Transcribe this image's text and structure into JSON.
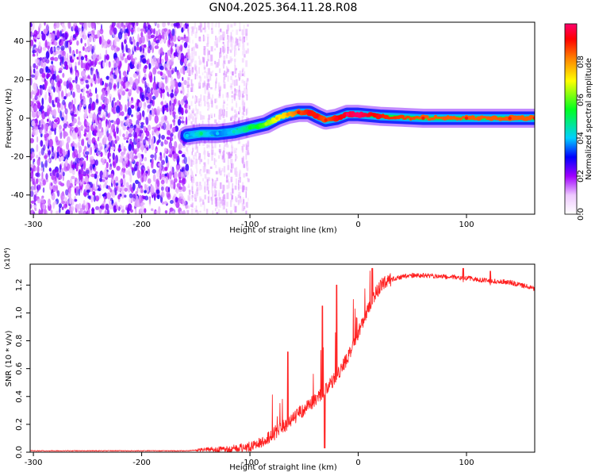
{
  "figure": {
    "title": "GN04.2025.364.11.28.R08"
  },
  "chart_data": [
    {
      "type": "heatmap",
      "title": "GN04.2025.364.11.28.R08",
      "xlabel": "Height of straight line (km)",
      "ylabel": "Frequency (Hz)",
      "colorbar_label": "Normalized spectral amplitude",
      "xlim": [
        -303,
        163
      ],
      "ylim": [
        -50,
        50
      ],
      "clim": [
        0,
        1
      ],
      "xticks": [
        -300,
        -200,
        -100,
        0,
        100
      ],
      "yticks": [
        -40,
        -20,
        0,
        20,
        40
      ],
      "colorbar_ticks": [
        0.0,
        0.2,
        0.4,
        0.6,
        0.8
      ],
      "grid": false,
      "colormap": [
        "#ffffff",
        "#7b00ff",
        "#0018ff",
        "#00c8ff",
        "#00ff20",
        "#ffff00",
        "#ff8000",
        "#ff0000",
        "#ff0060"
      ],
      "regions": [
        {
          "name": "sparse noise region",
          "x_range": [
            -303,
            -158
          ],
          "frequency_range": [
            -50,
            50
          ],
          "amplitude": "low"
        },
        {
          "name": "scattered noise columns",
          "x_range": [
            -158,
            -100
          ],
          "frequency_range": [
            -50,
            50
          ],
          "amplitude": "very low"
        },
        {
          "name": "central spectral trace",
          "x_range": [
            -158,
            163
          ],
          "frequency_range": [
            -10,
            4
          ],
          "amplitude": "high"
        }
      ],
      "trace": [
        {
          "x": -158,
          "y": -9,
          "amp": 0.35
        },
        {
          "x": -145,
          "y": -8,
          "amp": 0.45
        },
        {
          "x": -130,
          "y": -8,
          "amp": 0.35
        },
        {
          "x": -115,
          "y": -7,
          "amp": 0.4
        },
        {
          "x": -100,
          "y": -5,
          "amp": 0.5
        },
        {
          "x": -85,
          "y": -3,
          "amp": 0.6
        },
        {
          "x": -75,
          "y": 0,
          "amp": 0.7
        },
        {
          "x": -65,
          "y": 2,
          "amp": 0.75
        },
        {
          "x": -55,
          "y": 3,
          "amp": 0.85
        },
        {
          "x": -45,
          "y": 3,
          "amp": 0.9
        },
        {
          "x": -38,
          "y": 1,
          "amp": 0.9
        },
        {
          "x": -30,
          "y": -1,
          "amp": 0.85
        },
        {
          "x": -20,
          "y": 0,
          "amp": 0.9
        },
        {
          "x": -10,
          "y": 2,
          "amp": 0.95
        },
        {
          "x": 0,
          "y": 2,
          "amp": 1.0
        },
        {
          "x": 20,
          "y": 1,
          "amp": 0.9
        },
        {
          "x": 60,
          "y": 0,
          "amp": 0.85
        },
        {
          "x": 100,
          "y": 0,
          "amp": 0.85
        },
        {
          "x": 140,
          "y": 0,
          "amp": 0.85
        },
        {
          "x": 163,
          "y": 0,
          "amp": 0.85
        }
      ]
    },
    {
      "type": "line",
      "xlabel": "Height of straight line (km)",
      "ylabel": "SNR (10 * v/v)",
      "scale_label": "(x10⁴)",
      "xlim": [
        -303,
        163
      ],
      "ylim": [
        0,
        1.35
      ],
      "xticks": [
        -300,
        -200,
        -100,
        0,
        100
      ],
      "yticks": [
        0.0,
        0.2,
        0.4,
        0.6,
        0.8,
        1.0,
        1.2
      ],
      "grid": false,
      "line_color": "#ff2020",
      "series": [
        {
          "x": [
            -303,
            -250,
            -200,
            -160,
            -140,
            -120,
            -100,
            -90,
            -80,
            -70,
            -60,
            -50,
            -40,
            -30,
            -20,
            -10,
            0,
            10,
            20,
            30,
            40,
            50,
            60,
            80,
            100,
            120,
            140,
            160,
            163
          ],
          "y": [
            0.01,
            0.01,
            0.01,
            0.01,
            0.02,
            0.02,
            0.04,
            0.07,
            0.12,
            0.18,
            0.24,
            0.31,
            0.37,
            0.45,
            0.55,
            0.67,
            0.86,
            1.05,
            1.19,
            1.24,
            1.26,
            1.27,
            1.27,
            1.26,
            1.25,
            1.23,
            1.22,
            1.18,
            1.17
          ]
        }
      ],
      "spikes": [
        {
          "x": -65,
          "y": 0.72
        },
        {
          "x": -33,
          "y": 1.05
        },
        {
          "x": -20,
          "y": 1.2
        },
        {
          "x": 13,
          "y": 1.32
        },
        {
          "x": 97,
          "y": 1.32
        },
        {
          "x": 122,
          "y": 1.3
        },
        {
          "x": -31,
          "y": 0.03,
          "note": "dip"
        }
      ]
    }
  ]
}
